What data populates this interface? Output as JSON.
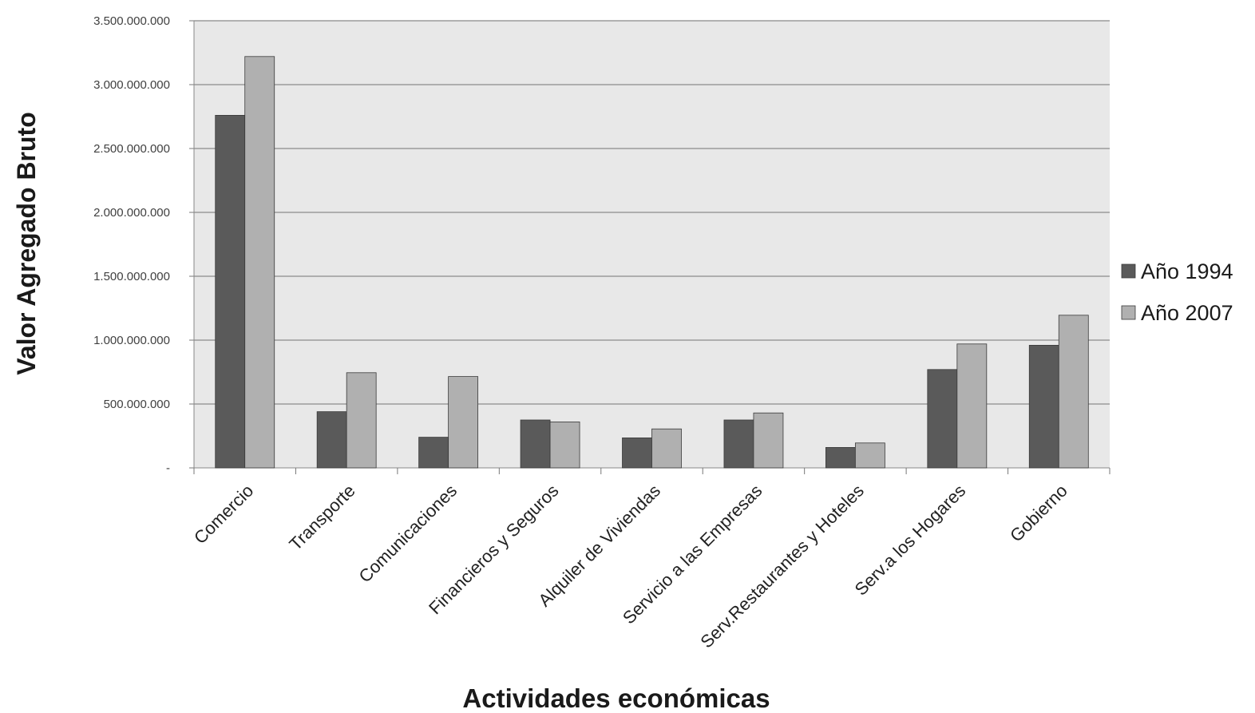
{
  "chart_data": {
    "type": "bar",
    "title": "",
    "xlabel": "Actividades económicas",
    "ylabel": "Valor Agregado Bruto",
    "categories": [
      "Comercio",
      "Transporte",
      "Comunicaciones",
      "Financieros y Seguros",
      "Alquiler de Viviendas",
      "Servicio a las Empresas",
      "Serv.Restaurantes y Hoteles",
      "Serv.a los Hogares",
      "Gobierno"
    ],
    "series": [
      {
        "name": "Año 1994",
        "color": "#5a5a5a",
        "values": [
          2760000000,
          440000000,
          240000000,
          375000000,
          235000000,
          375000000,
          160000000,
          770000000,
          960000000
        ]
      },
      {
        "name": "Año 2007",
        "color": "#b0b0b0",
        "values": [
          3220000000,
          745000000,
          715000000,
          360000000,
          305000000,
          430000000,
          195000000,
          970000000,
          1195000000
        ]
      }
    ],
    "ylim": [
      0,
      3500000000
    ],
    "yticks": [
      0,
      500000000,
      1000000000,
      1500000000,
      2000000000,
      2500000000,
      3000000000,
      3500000000
    ],
    "ytick_labels": [
      "-",
      "500.000.000",
      "1.000.000.000",
      "1.500.000.000",
      "2.000.000.000",
      "2.500.000.000",
      "3.000.000.000",
      "3.500.000.000"
    ],
    "grid": true,
    "legend_position": "right"
  }
}
